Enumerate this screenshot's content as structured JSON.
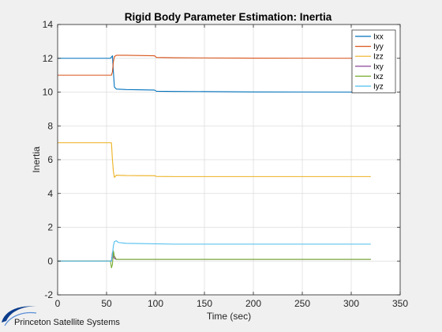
{
  "chart_data": {
    "type": "line",
    "title": "Rigid Body Parameter Estimation: Inertia",
    "xlabel": "Time (sec)",
    "ylabel": "Inertia",
    "xlim": [
      0,
      350
    ],
    "ylim": [
      -2,
      14
    ],
    "xticks": [
      0,
      50,
      100,
      150,
      200,
      250,
      300,
      350
    ],
    "yticks": [
      -2,
      0,
      2,
      4,
      6,
      8,
      10,
      12,
      14
    ],
    "grid": true,
    "legend_position": "top-right",
    "series": [
      {
        "name": "Ixx",
        "color": "#0072BD",
        "x": [
          0,
          54,
          56,
          57,
          58,
          60,
          70,
          99,
          101,
          120,
          200,
          320
        ],
        "y": [
          12,
          12,
          12.15,
          11.2,
          10.3,
          10.18,
          10.15,
          10.12,
          10.05,
          10.04,
          10.01,
          10.0
        ]
      },
      {
        "name": "Iyy",
        "color": "#D95319",
        "x": [
          0,
          55,
          56,
          57,
          58,
          60,
          70,
          99,
          101,
          120,
          200,
          320
        ],
        "y": [
          11,
          11,
          11.2,
          11.8,
          12.1,
          12.18,
          12.18,
          12.15,
          12.05,
          12.03,
          12.01,
          12.0
        ]
      },
      {
        "name": "Izz",
        "color": "#EDB120",
        "x": [
          0,
          55,
          56,
          57,
          58,
          60,
          70,
          99,
          101,
          120,
          200,
          320
        ],
        "y": [
          7,
          7,
          6.0,
          5.3,
          4.95,
          5.08,
          5.06,
          5.05,
          5.01,
          5.0,
          5.0,
          5.0
        ]
      },
      {
        "name": "Ixy",
        "color": "#7E2F8E",
        "x": [
          0,
          55,
          56,
          57,
          58,
          60,
          70,
          120,
          320
        ],
        "y": [
          0,
          0,
          0.5,
          0.3,
          0.15,
          0.1,
          0.1,
          0.1,
          0.1
        ]
      },
      {
        "name": "Ixz",
        "color": "#77AC30",
        "x": [
          0,
          54,
          55,
          56,
          57,
          58,
          60,
          70,
          120,
          320
        ],
        "y": [
          0,
          0,
          -0.4,
          -0.2,
          0.6,
          0.3,
          0.1,
          0.1,
          0.1,
          0.1
        ]
      },
      {
        "name": "Iyz",
        "color": "#4DBEEE",
        "x": [
          0,
          55,
          56,
          57,
          58,
          60,
          62,
          70,
          120,
          320
        ],
        "y": [
          0,
          0,
          0.4,
          0.9,
          1.15,
          1.2,
          1.1,
          1.05,
          1.0,
          1.0
        ]
      }
    ]
  },
  "logo": {
    "text": "Princeton Satellite Systems",
    "icon": "satellite-swoosh-icon",
    "colors": {
      "ring": "#0d3d8c",
      "text": "#1a1a1a"
    }
  }
}
